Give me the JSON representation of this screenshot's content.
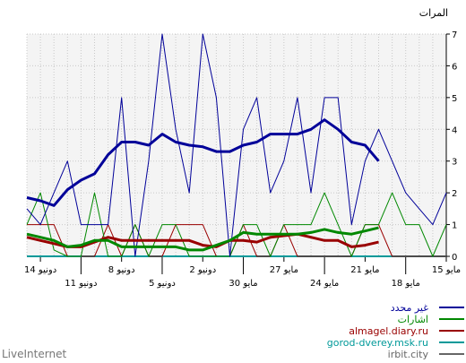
{
  "brand": "LiveInternet",
  "chart_data": {
    "type": "line",
    "ylabel": "المرات",
    "ylim": [
      0,
      7
    ],
    "yticks": [
      0,
      1,
      2,
      3,
      4,
      5,
      6,
      7
    ],
    "grid": true,
    "x_reversed": true,
    "x_day_offset": [
      0,
      31
    ],
    "x_tick_labels": [
      {
        "day": 0,
        "label": "15 مايو",
        "row": 0
      },
      {
        "day": 3,
        "label": "18 مايو",
        "row": 1
      },
      {
        "day": 6,
        "label": "21 مايو",
        "row": 0
      },
      {
        "day": 9,
        "label": "24 مايو",
        "row": 1
      },
      {
        "day": 12,
        "label": "27 مايو",
        "row": 0
      },
      {
        "day": 15,
        "label": "30 مايو",
        "row": 1
      },
      {
        "day": 18,
        "label": "2 دونيو",
        "row": 0
      },
      {
        "day": 21,
        "label": "5 دونيو",
        "row": 1
      },
      {
        "day": 24,
        "label": "8 دونيو",
        "row": 0
      },
      {
        "day": 27,
        "label": "11 دونيو",
        "row": 1
      },
      {
        "day": 30,
        "label": "14 دونيو",
        "row": 0
      }
    ],
    "legend_position": "bottom-right",
    "series": [
      {
        "name": "غير محدد",
        "color": "#000099",
        "width": 1,
        "values": [
          2,
          1,
          1.5,
          2,
          3,
          4,
          3,
          1,
          5,
          5,
          2,
          5,
          3,
          2,
          5,
          4,
          0,
          5,
          7,
          2,
          4,
          7,
          3,
          0,
          5,
          1,
          1,
          1,
          3,
          2,
          1,
          1.5
        ]
      },
      {
        "name": "غير محدد",
        "color": "#000099",
        "width": 3,
        "values": [
          null,
          null,
          null,
          null,
          null,
          3,
          3.5,
          3.6,
          4,
          4.3,
          4,
          3.85,
          3.85,
          3.85,
          3.6,
          3.5,
          3.3,
          3.3,
          3.45,
          3.5,
          3.6,
          3.85,
          3.5,
          3.6,
          3.6,
          3.2,
          2.6,
          2.4,
          2.1,
          1.6,
          1.75,
          1.85
        ]
      },
      {
        "name": "اشارات",
        "color": "#008800",
        "width": 1,
        "values": [
          1,
          0,
          1,
          1,
          2,
          1,
          1,
          0,
          1,
          2,
          1,
          1,
          1,
          0,
          1,
          1,
          0,
          0,
          0,
          0,
          1,
          1,
          0,
          1,
          0,
          0,
          2,
          0,
          0,
          0.2,
          2,
          1
        ]
      },
      {
        "name": "اشارات",
        "color": "#008800",
        "width": 3,
        "values": [
          null,
          null,
          null,
          null,
          null,
          0.9,
          0.8,
          0.7,
          0.75,
          0.85,
          0.75,
          0.7,
          0.7,
          0.7,
          0.7,
          0.75,
          0.5,
          0.35,
          0.2,
          0.2,
          0.3,
          0.3,
          0.3,
          0.3,
          0.3,
          0.5,
          0.5,
          0.35,
          0.3,
          0.5,
          0.6,
          0.7
        ]
      },
      {
        "name": "almagel.diary.ru",
        "color": "#990000",
        "width": 1,
        "values": [
          0,
          0,
          0,
          0,
          0,
          1,
          1,
          0,
          0,
          0,
          0,
          0,
          1,
          0,
          0,
          1,
          0,
          0,
          1,
          1,
          1,
          0,
          0,
          1,
          0,
          1,
          0,
          0,
          0,
          1,
          1,
          1
        ]
      },
      {
        "name": "almagel.diary.ru",
        "color": "#990000",
        "width": 3,
        "values": [
          null,
          null,
          null,
          null,
          null,
          0.45,
          0.35,
          0.3,
          0.5,
          0.5,
          0.6,
          0.7,
          0.65,
          0.6,
          0.45,
          0.5,
          0.5,
          0.3,
          0.35,
          0.5,
          0.5,
          0.5,
          0.5,
          0.5,
          0.5,
          0.6,
          0.45,
          0.3,
          0.3,
          0.4,
          0.5,
          0.6
        ]
      },
      {
        "name": "gorod-dverey.msk.ru",
        "color": "#009999",
        "width": 2,
        "values": [
          0,
          0,
          0,
          0,
          0,
          0,
          0,
          0,
          0,
          0,
          0,
          0,
          0,
          0,
          0,
          0,
          0,
          0,
          0,
          0,
          0,
          0,
          0,
          0,
          0,
          0,
          0,
          0,
          0,
          0,
          0,
          0
        ]
      },
      {
        "name": "irbit.city",
        "color": "#666666",
        "width": 1,
        "values": []
      }
    ]
  }
}
